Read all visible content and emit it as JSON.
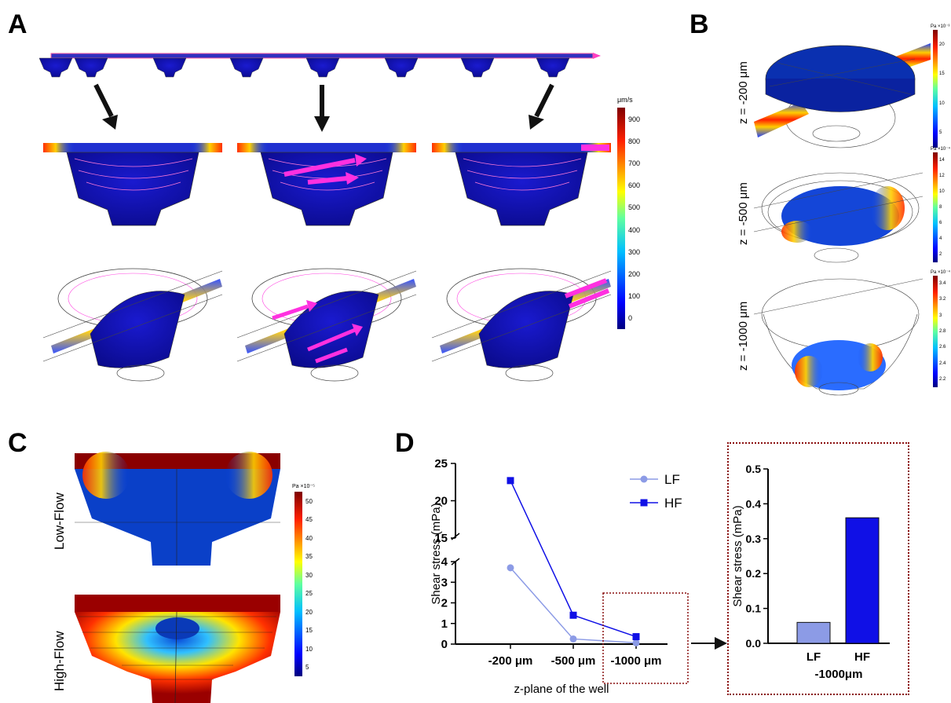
{
  "panels": {
    "a": "A",
    "b": "B",
    "c": "C",
    "d": "D"
  },
  "panelA": {
    "colorbar": {
      "unit": "μm/s",
      "ticks": [
        "900",
        "800",
        "700",
        "600",
        "500",
        "400",
        "300",
        "200",
        "100",
        "0"
      ]
    }
  },
  "panelB": {
    "labels": [
      "z = -200 μm",
      "z = -500 μm",
      "z = -1000 μm"
    ],
    "colorbars": [
      {
        "unit": "Pa",
        "exp": "×10⁻³",
        "ticks": [
          "20",
          "15",
          "10",
          "5"
        ]
      },
      {
        "unit": "Pa",
        "exp": "×10⁻⁴",
        "ticks": [
          "14",
          "12",
          "10",
          "8",
          "6",
          "4",
          "2"
        ]
      },
      {
        "unit": "Pa",
        "exp": "×10⁻⁴",
        "ticks": [
          "3.4",
          "3.2",
          "3",
          "2.8",
          "2.6",
          "2.4",
          "2.2"
        ]
      }
    ]
  },
  "panelC": {
    "labels": [
      "Low-Flow",
      "High-Flow"
    ],
    "colorbar": {
      "unit": "Pa",
      "exp": "×10⁻⁵",
      "ticks": [
        "50",
        "45",
        "40",
        "35",
        "30",
        "25",
        "20",
        "15",
        "10",
        "5"
      ]
    }
  },
  "chart_data": [
    {
      "type": "line",
      "xlabel": "z-plane of the well",
      "ylabel": "Shear stress  (mPa)",
      "categories": [
        "-200 μm",
        "-500 μm",
        "-1000 μm"
      ],
      "y_axis_break": [
        4,
        15
      ],
      "yticks_lower": [
        "0",
        "1",
        "2",
        "3",
        "4"
      ],
      "yticks_upper": [
        "15",
        "20",
        "25"
      ],
      "series": [
        {
          "name": "LF",
          "values": [
            3.7,
            0.25,
            0.06
          ],
          "color": "#8c9be6",
          "marker": "circle"
        },
        {
          "name": "HF",
          "values": [
            22.7,
            1.4,
            0.36
          ],
          "color": "#1010e6",
          "marker": "square"
        }
      ],
      "legend": "top-right"
    },
    {
      "type": "bar",
      "xlabel": "-1000μm",
      "ylabel": "Shear stress  (mPa)",
      "categories": [
        "LF",
        "HF"
      ],
      "values": [
        0.06,
        0.36
      ],
      "colors": [
        "#8c9be6",
        "#1010e6"
      ],
      "ylim": [
        0,
        0.5
      ],
      "yticks": [
        "0.0",
        "0.1",
        "0.2",
        "0.3",
        "0.4",
        "0.5"
      ]
    }
  ]
}
